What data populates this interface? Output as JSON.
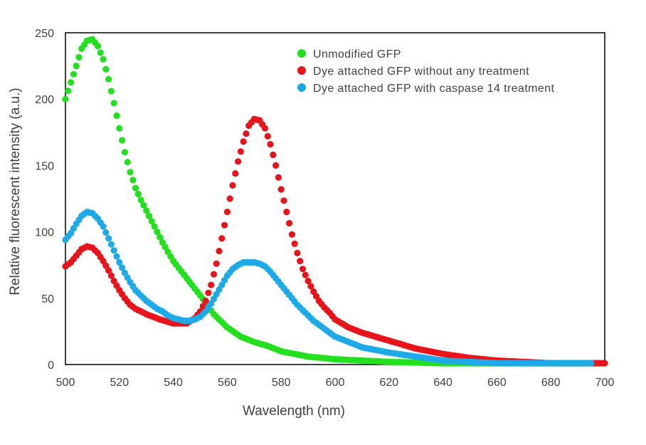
{
  "chart_data": {
    "type": "scatter",
    "title": "",
    "xlabel": "Wavelength (nm)",
    "ylabel": "Relative fluorescent intensity (a.u.)",
    "xlim": [
      500,
      700
    ],
    "ylim": [
      0,
      250
    ],
    "xticks": [
      500,
      520,
      540,
      560,
      580,
      600,
      620,
      640,
      660,
      680,
      700
    ],
    "yticks": [
      0,
      50,
      100,
      150,
      200,
      250
    ],
    "grid": false,
    "legend_position": "top-right",
    "series": [
      {
        "name": "Unmodified GFP",
        "color": "#22e01e",
        "x": [
          500,
          504,
          506,
          508,
          510,
          512,
          514,
          516,
          518,
          520,
          522,
          524,
          526,
          528,
          530,
          532,
          534,
          536,
          538,
          540,
          545,
          550,
          555,
          560,
          565,
          570,
          575,
          580,
          590,
          600,
          610,
          620,
          640,
          660,
          680,
          700
        ],
        "y": [
          200,
          225,
          238,
          244,
          245,
          240,
          230,
          215,
          197,
          178,
          160,
          145,
          133,
          124,
          116,
          108,
          100,
          92,
          85,
          78,
          65,
          52,
          38,
          28,
          21,
          17,
          14,
          10,
          6,
          4,
          3,
          2,
          1,
          1,
          1,
          1
        ]
      },
      {
        "name": "Dye attached GFP without any treatment",
        "color": "#e8141c",
        "x": [
          500,
          502,
          504,
          506,
          508,
          510,
          512,
          514,
          516,
          518,
          520,
          522,
          524,
          526,
          528,
          530,
          535,
          540,
          545,
          548,
          550,
          552,
          554,
          556,
          558,
          560,
          562,
          564,
          566,
          568,
          570,
          572,
          574,
          576,
          578,
          580,
          582,
          584,
          586,
          588,
          590,
          592,
          594,
          596,
          598,
          600,
          605,
          610,
          620,
          630,
          640,
          650,
          660,
          670,
          680,
          690,
          700
        ],
        "y": [
          74,
          77,
          82,
          87,
          89,
          88,
          84,
          78,
          71,
          63,
          56,
          50,
          45,
          42,
          40,
          38,
          34,
          31,
          31,
          35,
          40,
          48,
          60,
          76,
          95,
          115,
          135,
          153,
          168,
          180,
          185,
          184,
          178,
          166,
          150,
          132,
          115,
          98,
          84,
          72,
          63,
          55,
          48,
          43,
          39,
          34,
          28,
          24,
          18,
          12,
          8,
          5,
          3,
          2,
          1,
          1,
          1
        ]
      },
      {
        "name": "Dye attached GFP with caspase 14 treatment",
        "color": "#1eaae8",
        "x": [
          500,
          502,
          504,
          506,
          508,
          510,
          512,
          514,
          516,
          518,
          520,
          522,
          524,
          526,
          528,
          530,
          532,
          534,
          536,
          538,
          540,
          542,
          544,
          546,
          548,
          550,
          552,
          554,
          556,
          558,
          560,
          562,
          564,
          566,
          568,
          570,
          572,
          574,
          576,
          578,
          580,
          582,
          584,
          586,
          588,
          590,
          592,
          594,
          596,
          598,
          600,
          605,
          610,
          620,
          630,
          640,
          650,
          660,
          670,
          680,
          690,
          695
        ],
        "y": [
          94,
          99,
          106,
          112,
          115,
          114,
          110,
          104,
          95,
          86,
          77,
          69,
          62,
          56,
          52,
          48,
          45,
          42,
          40,
          37,
          35,
          34,
          33,
          33,
          34,
          36,
          40,
          46,
          53,
          60,
          67,
          72,
          75,
          77,
          77,
          77,
          76,
          74,
          70,
          65,
          60,
          55,
          50,
          45,
          41,
          37,
          33,
          30,
          27,
          24,
          21,
          17,
          13,
          9,
          6,
          3,
          2,
          1,
          1,
          1,
          1,
          1
        ]
      }
    ]
  }
}
